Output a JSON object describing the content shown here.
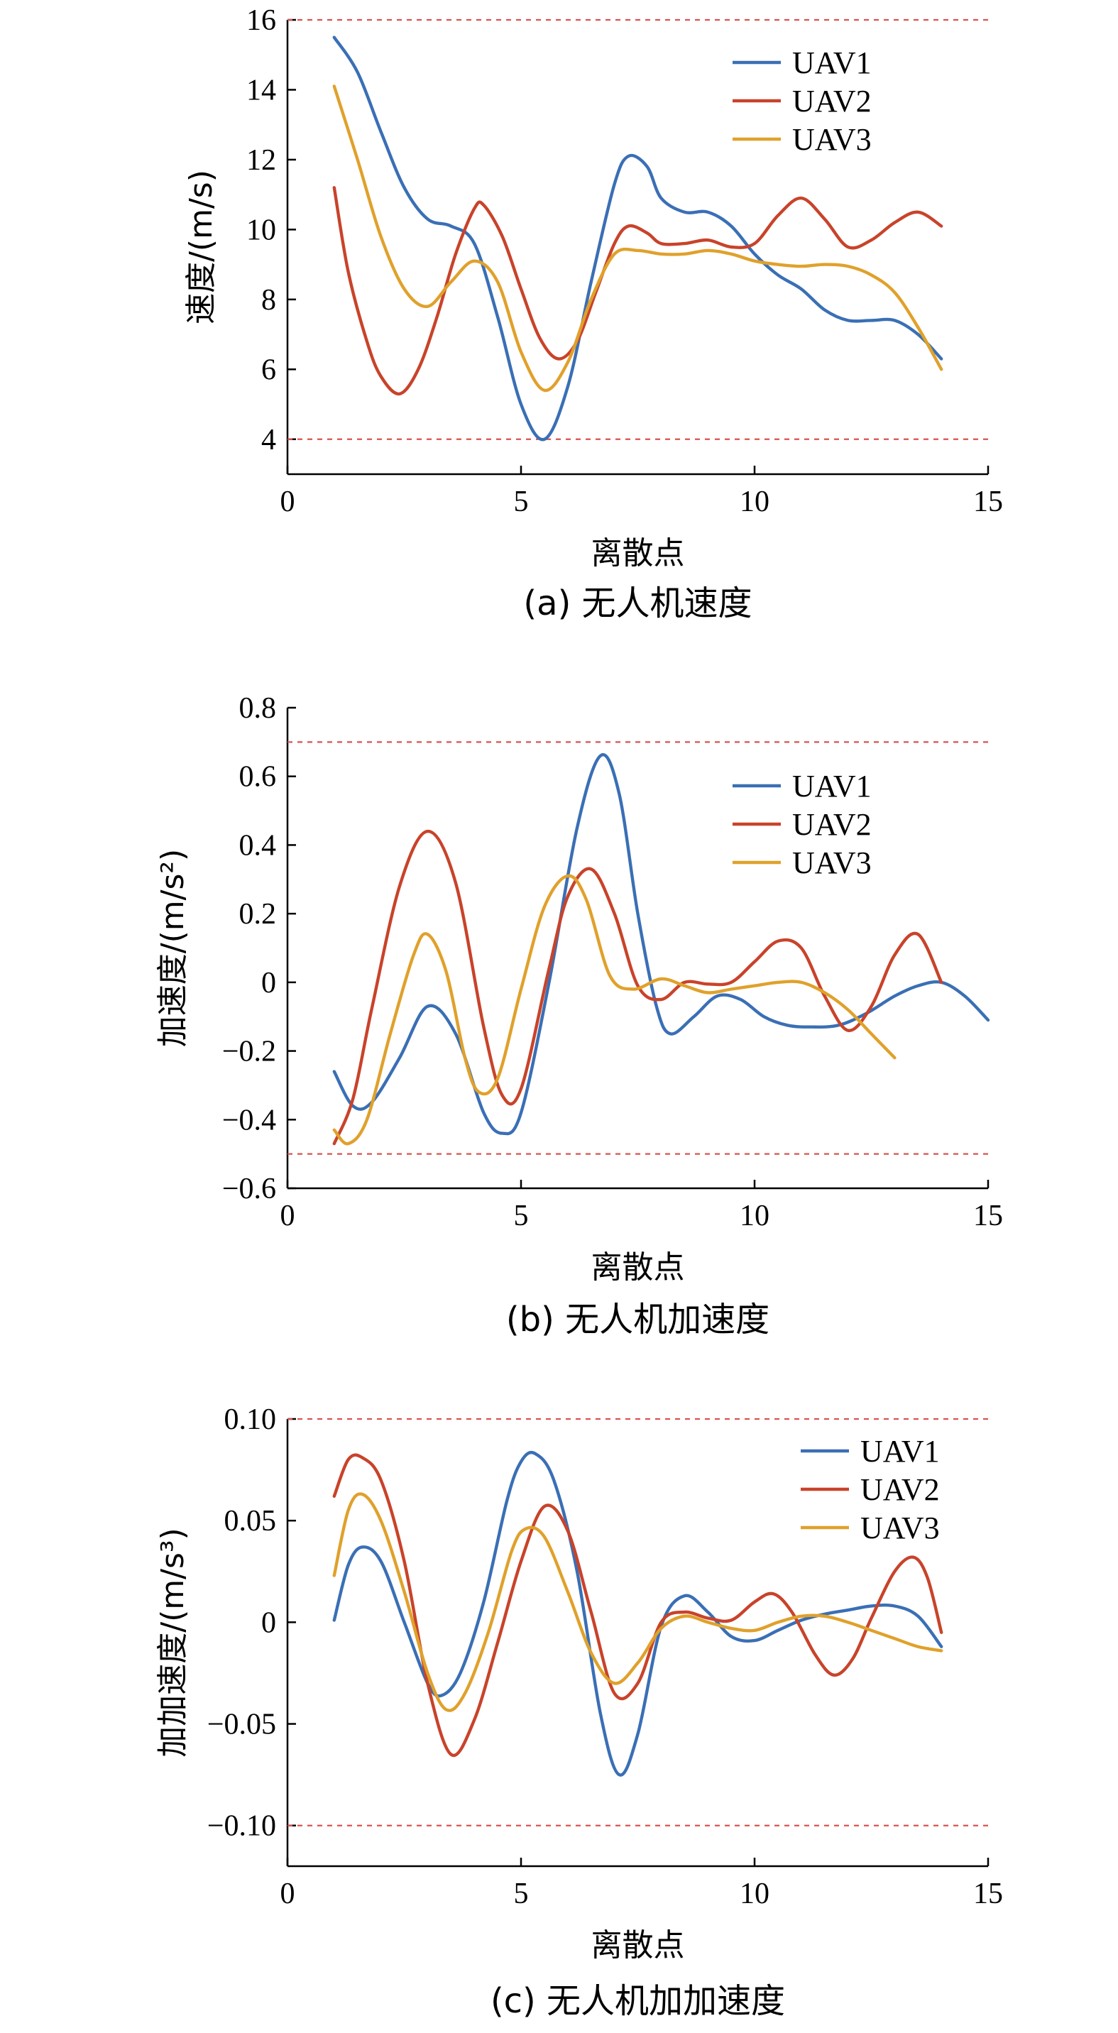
{
  "colors": {
    "UAV1": "#3a6fb5",
    "UAV2": "#c8432a",
    "UAV3": "#e0a12b",
    "reference": "#d9534f"
  },
  "chart_data": [
    {
      "type": "line",
      "caption": "(a) 无人机速度",
      "xlabel": "离散点",
      "ylabel": "速度/(m/s)",
      "xlim": [
        0,
        15
      ],
      "ylim": [
        3,
        16
      ],
      "xticks": [
        0,
        5,
        10,
        15
      ],
      "yticks": [
        4,
        6,
        8,
        10,
        12,
        14,
        16
      ],
      "yticklabels": [
        "4",
        "6",
        "8",
        "10",
        "12",
        "14",
        "16"
      ],
      "reference_lines": [
        16,
        4
      ],
      "legend": "upper-right",
      "series": [
        {
          "name": "UAV1",
          "x": [
            1,
            1.5,
            2,
            2.5,
            3,
            3.5,
            4,
            4.5,
            5,
            5.5,
            6,
            6.5,
            7,
            7.3,
            7.7,
            8,
            8.5,
            9,
            9.5,
            10,
            10.5,
            11,
            11.5,
            12,
            12.5,
            13,
            13.5,
            14
          ],
          "y": [
            15.5,
            14.5,
            12.8,
            11.2,
            10.3,
            10.1,
            9.6,
            7.5,
            5.0,
            4.0,
            5.5,
            8.5,
            11.3,
            12.1,
            11.8,
            10.9,
            10.5,
            10.5,
            10.1,
            9.3,
            8.7,
            8.3,
            7.7,
            7.4,
            7.4,
            7.4,
            7.0,
            6.3
          ]
        },
        {
          "name": "UAV2",
          "x": [
            1,
            1.3,
            1.7,
            2,
            2.4,
            2.8,
            3.2,
            3.6,
            4,
            4.2,
            4.6,
            5,
            5.4,
            5.8,
            6.2,
            6.6,
            7,
            7.3,
            7.7,
            8,
            8.5,
            9,
            9.5,
            10,
            10.5,
            11,
            11.5,
            12,
            12.5,
            13,
            13.5,
            14
          ],
          "y": [
            11.2,
            8.8,
            6.8,
            5.8,
            5.3,
            6.0,
            7.5,
            9.3,
            10.6,
            10.7,
            9.8,
            8.3,
            6.9,
            6.3,
            6.8,
            8.2,
            9.6,
            10.1,
            9.9,
            9.6,
            9.6,
            9.7,
            9.5,
            9.6,
            10.4,
            10.9,
            10.3,
            9.5,
            9.7,
            10.2,
            10.5,
            10.1
          ]
        },
        {
          "name": "UAV3",
          "x": [
            1,
            1.5,
            2,
            2.5,
            3,
            3.5,
            4,
            4.5,
            5,
            5.5,
            6,
            6.5,
            7,
            7.5,
            8,
            8.5,
            9,
            9.5,
            10,
            10.5,
            11,
            11.5,
            12,
            12.5,
            13,
            13.5,
            14
          ],
          "y": [
            14.1,
            12.0,
            9.8,
            8.3,
            7.8,
            8.5,
            9.1,
            8.5,
            6.5,
            5.4,
            6.2,
            8.0,
            9.3,
            9.4,
            9.3,
            9.3,
            9.4,
            9.3,
            9.1,
            9.0,
            8.95,
            9.0,
            8.95,
            8.7,
            8.2,
            7.2,
            6.0
          ]
        }
      ]
    },
    {
      "type": "line",
      "caption": "(b) 无人机加速度",
      "xlabel": "离散点",
      "ylabel": "加速度/(m/s²)",
      "xlim": [
        0,
        15
      ],
      "ylim": [
        -0.6,
        0.8
      ],
      "xticks": [
        0,
        5,
        10,
        15
      ],
      "yticks": [
        -0.6,
        -0.4,
        -0.2,
        0,
        0.2,
        0.4,
        0.6,
        0.8
      ],
      "yticklabels": [
        "−0.6",
        "−0.4",
        "−0.2",
        "0",
        "0.2",
        "0.4",
        "0.6",
        "0.8"
      ],
      "reference_lines": [
        0.7,
        -0.5
      ],
      "legend": "upper-right",
      "series": [
        {
          "name": "UAV1",
          "x": [
            1,
            1.4,
            1.8,
            2.4,
            3,
            3.6,
            4.2,
            4.6,
            5,
            5.6,
            6.2,
            6.7,
            7.1,
            7.5,
            7.9,
            8.2,
            8.7,
            9.2,
            9.7,
            10.2,
            10.7,
            11.2,
            11.8,
            12.4,
            13,
            13.5,
            14,
            14.5,
            15
          ],
          "y": [
            -0.26,
            -0.36,
            -0.35,
            -0.22,
            -0.07,
            -0.15,
            -0.38,
            -0.44,
            -0.38,
            0.0,
            0.45,
            0.66,
            0.55,
            0.2,
            -0.07,
            -0.15,
            -0.1,
            -0.04,
            -0.05,
            -0.1,
            -0.125,
            -0.13,
            -0.125,
            -0.09,
            -0.04,
            -0.01,
            0.0,
            -0.04,
            -0.11
          ]
        },
        {
          "name": "UAV2",
          "x": [
            1,
            1.4,
            1.8,
            2.4,
            3,
            3.6,
            4.2,
            4.6,
            5,
            5.6,
            6,
            6.5,
            7,
            7.5,
            8,
            8.5,
            9,
            9.5,
            10,
            10.5,
            11,
            11.5,
            12,
            12.5,
            13,
            13.5,
            14
          ],
          "y": [
            -0.47,
            -0.34,
            -0.08,
            0.28,
            0.44,
            0.29,
            -0.13,
            -0.33,
            -0.31,
            0.04,
            0.25,
            0.33,
            0.2,
            -0.01,
            -0.05,
            0.0,
            -0.005,
            0.0,
            0.06,
            0.12,
            0.1,
            -0.04,
            -0.14,
            -0.07,
            0.08,
            0.14,
            0.0
          ]
        },
        {
          "name": "UAV3",
          "x": [
            1,
            1.3,
            1.7,
            2.2,
            2.7,
            3,
            3.4,
            3.8,
            4.1,
            4.5,
            5,
            5.5,
            6,
            6.4,
            6.9,
            7.4,
            8,
            8.5,
            9,
            9.5,
            10,
            10.5,
            11,
            11.5,
            12,
            12.5,
            13
          ],
          "y": [
            -0.43,
            -0.47,
            -0.4,
            -0.15,
            0.08,
            0.14,
            0.03,
            -0.22,
            -0.32,
            -0.28,
            -0.02,
            0.22,
            0.31,
            0.24,
            0.02,
            -0.02,
            0.01,
            -0.01,
            -0.03,
            -0.02,
            -0.01,
            0.0,
            0.0,
            -0.03,
            -0.08,
            -0.15,
            -0.22
          ]
        }
      ]
    },
    {
      "type": "line",
      "caption": "(c) 无人机加加速度",
      "xlabel": "离散点",
      "ylabel": "加加速度/(m/s³)",
      "xlim": [
        0,
        15
      ],
      "ylim": [
        -0.12,
        0.1
      ],
      "xticks": [
        0,
        5,
        10,
        15
      ],
      "yticks": [
        -0.1,
        -0.05,
        0,
        0.05,
        0.1
      ],
      "yticklabels": [
        "−0.10",
        "−0.05",
        "0",
        "0.05",
        "0.10"
      ],
      "reference_lines": [
        0.1,
        -0.1
      ],
      "legend": "upper-right",
      "series": [
        {
          "name": "UAV1",
          "x": [
            1,
            1.3,
            1.6,
            2,
            2.5,
            3,
            3.3,
            3.7,
            4.2,
            4.7,
            5,
            5.3,
            5.7,
            6.2,
            6.7,
            7.1,
            7.5,
            8,
            8.5,
            9,
            9.5,
            10,
            10.5,
            11,
            11.5,
            12,
            12.5,
            13,
            13.5,
            14
          ],
          "y": [
            0.001,
            0.028,
            0.037,
            0.03,
            0.0,
            -0.03,
            -0.036,
            -0.025,
            0.01,
            0.06,
            0.079,
            0.083,
            0.07,
            0.025,
            -0.045,
            -0.075,
            -0.055,
            -0.002,
            0.013,
            0.005,
            -0.007,
            -0.009,
            -0.004,
            0.001,
            0.004,
            0.006,
            0.008,
            0.008,
            0.003,
            -0.012
          ]
        },
        {
          "name": "UAV2",
          "x": [
            1,
            1.3,
            1.6,
            2,
            2.5,
            3,
            3.5,
            4,
            4.5,
            5,
            5.5,
            6,
            6.5,
            7,
            7.5,
            8,
            8.5,
            9,
            9.5,
            10,
            10.4,
            10.8,
            11.3,
            11.7,
            12.1,
            12.5,
            13,
            13.4,
            13.7,
            14
          ],
          "y": [
            0.062,
            0.08,
            0.081,
            0.07,
            0.03,
            -0.03,
            -0.065,
            -0.048,
            -0.01,
            0.03,
            0.057,
            0.045,
            0.005,
            -0.035,
            -0.03,
            0.0,
            0.005,
            0.002,
            0.001,
            0.01,
            0.014,
            0.005,
            -0.016,
            -0.026,
            -0.018,
            0.002,
            0.025,
            0.032,
            0.022,
            -0.005
          ]
        },
        {
          "name": "UAV3",
          "x": [
            1,
            1.3,
            1.6,
            2,
            2.5,
            3,
            3.4,
            3.8,
            4.3,
            4.8,
            5.1,
            5.5,
            6,
            6.5,
            7,
            7.5,
            8,
            8.5,
            9,
            9.5,
            10,
            10.5,
            11,
            11.5,
            12,
            12.5,
            13,
            13.5,
            14
          ],
          "y": [
            0.023,
            0.055,
            0.063,
            0.05,
            0.015,
            -0.025,
            -0.043,
            -0.035,
            -0.005,
            0.035,
            0.046,
            0.042,
            0.015,
            -0.015,
            -0.03,
            -0.02,
            -0.003,
            0.003,
            0.0,
            -0.003,
            -0.004,
            0.0,
            0.003,
            0.003,
            0.0,
            -0.004,
            -0.008,
            -0.012,
            -0.014
          ]
        }
      ]
    }
  ]
}
